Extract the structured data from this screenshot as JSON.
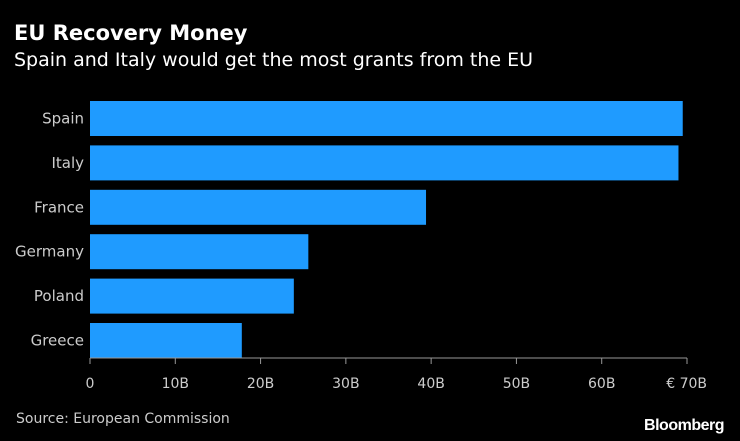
{
  "chart_data": {
    "type": "bar",
    "orientation": "horizontal",
    "title": "EU Recovery Money",
    "subtitle": "Spain and Italy would get the most grants from the EU",
    "categories": [
      "Spain",
      "Italy",
      "France",
      "Germany",
      "Poland",
      "Greece"
    ],
    "values": [
      69.5,
      69.0,
      39.4,
      25.6,
      23.9,
      17.8
    ],
    "unit": "B",
    "x_ticks": [
      "0",
      "10B",
      "20B",
      "30B",
      "40B",
      "50B",
      "60B",
      "€ 70B"
    ],
    "x_tick_values": [
      0,
      10,
      20,
      30,
      40,
      50,
      60,
      70
    ],
    "xlim": [
      0,
      70
    ],
    "xlabel": "",
    "ylabel": "",
    "grid": false,
    "bar_color": "#1f9bff"
  },
  "footer": {
    "source": "Source: European Commission",
    "brand": "Bloomberg"
  },
  "colors": {
    "background": "#000000",
    "text": "#ffffff",
    "muted_text": "#cccccc",
    "axis": "#999999"
  }
}
